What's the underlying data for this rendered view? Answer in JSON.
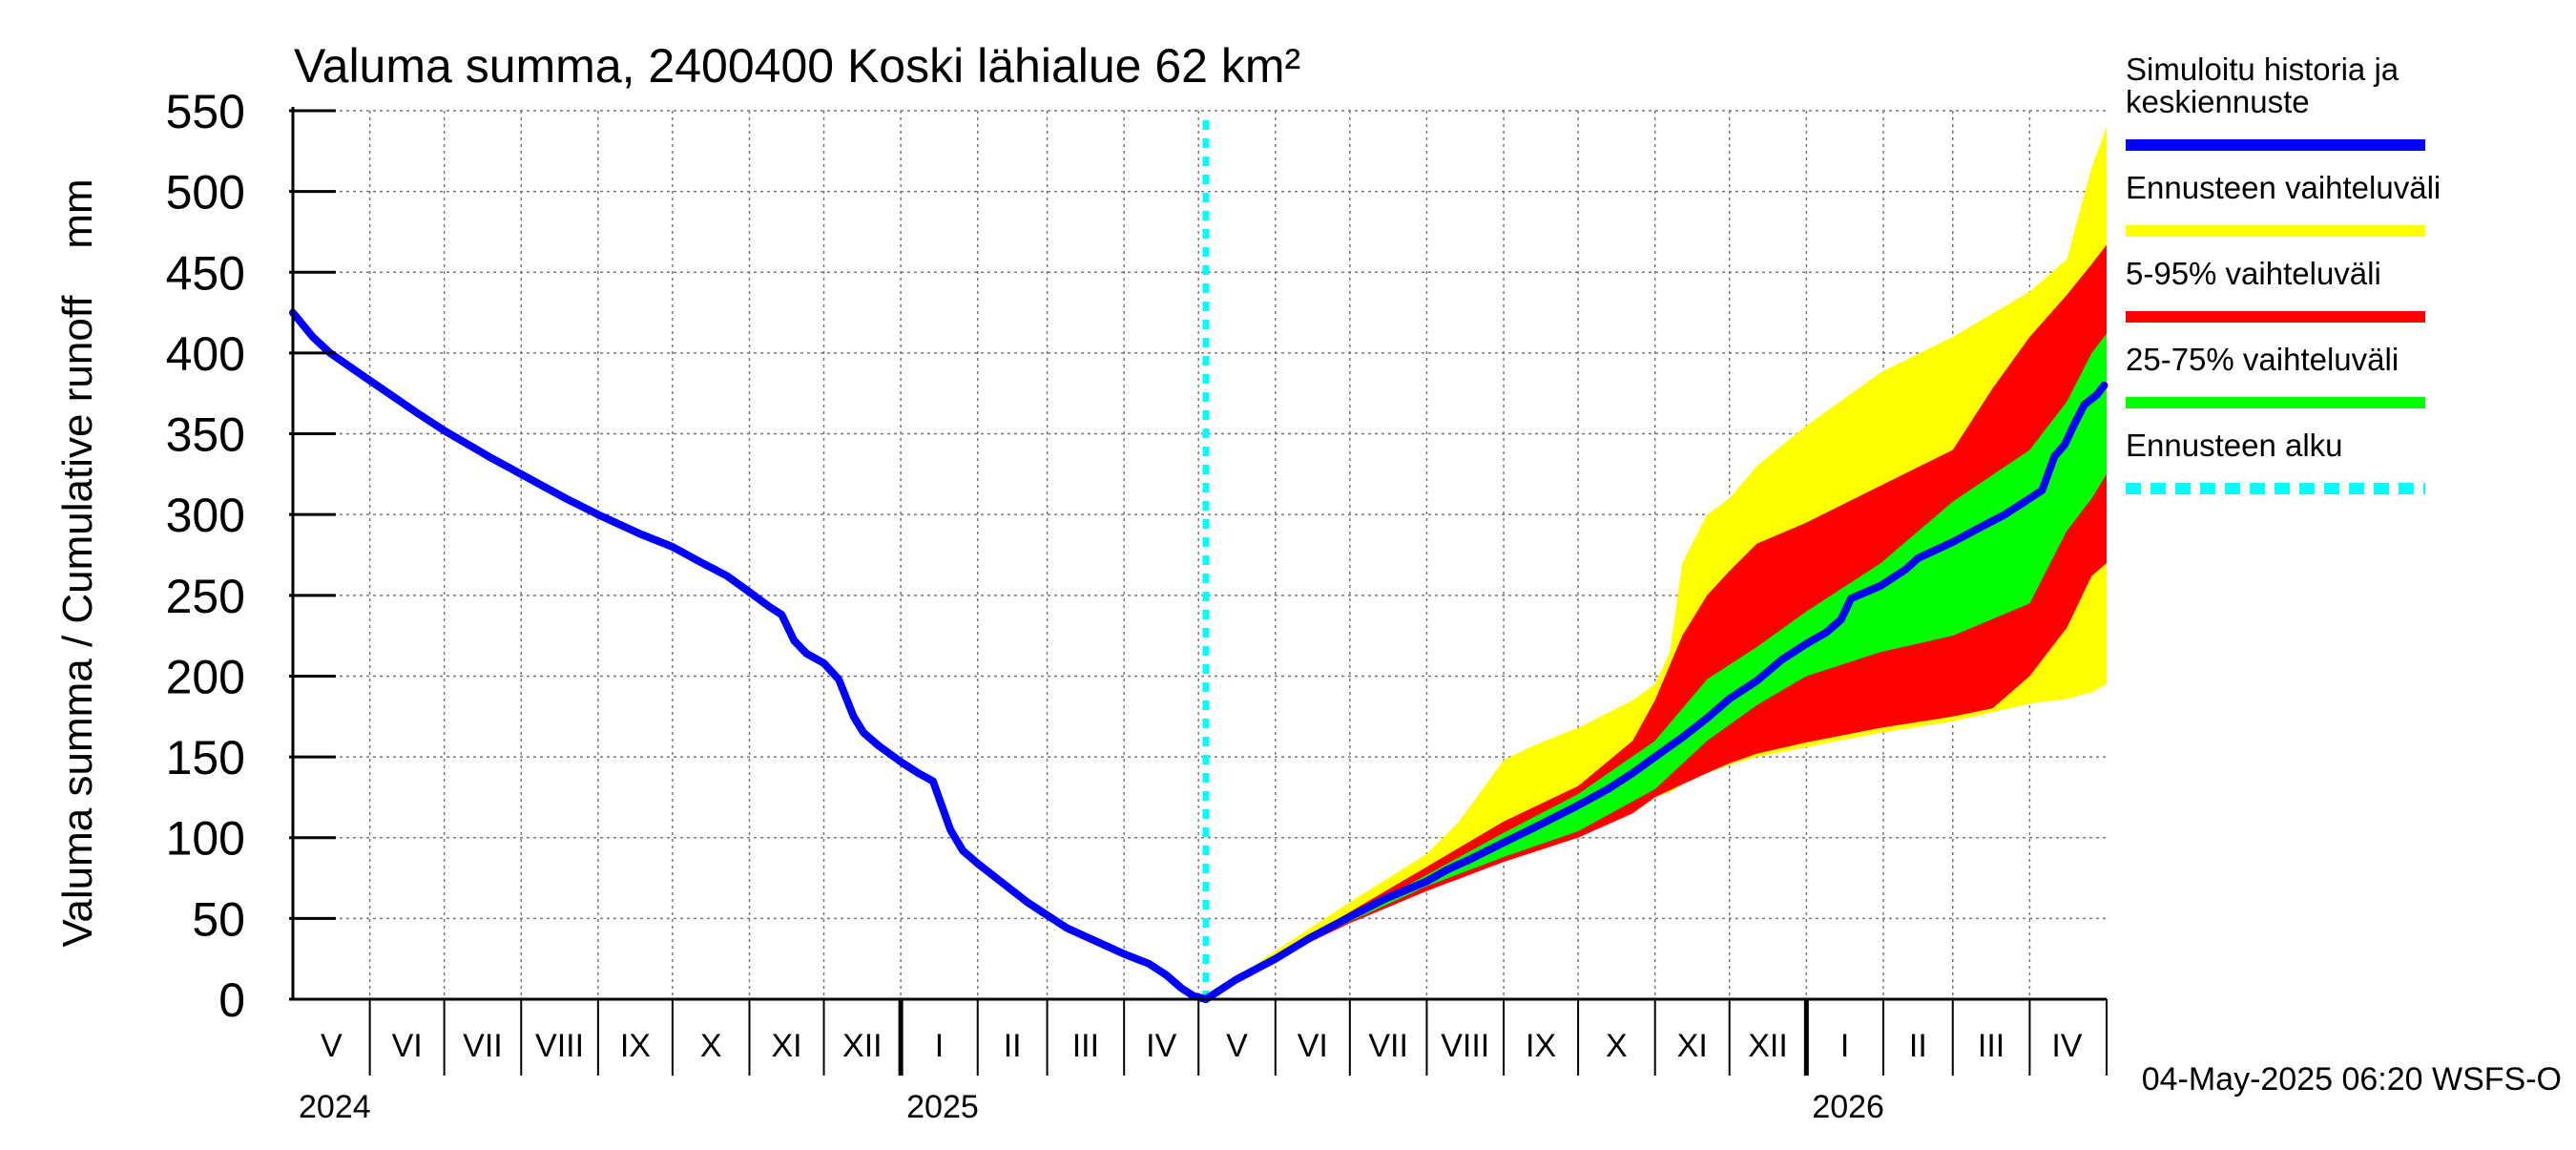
{
  "chart_data": {
    "type": "area",
    "title": "Valuma summa, 2400400 Koski lähialue 62 km²",
    "ylabel": "Valuma summa / Cumulative runoff    mm",
    "ylim": [
      0,
      550
    ],
    "y_ticks": [
      "0",
      "50",
      "100",
      "150",
      "200",
      "250",
      "300",
      "350",
      "400",
      "450",
      "500",
      "550"
    ],
    "x_range_days": [
      0,
      731
    ],
    "grid": true,
    "legend_position": "right",
    "month_labels": [
      {
        "label": "V",
        "day": 0,
        "end": 31
      },
      {
        "label": "VI",
        "day": 31,
        "end": 61
      },
      {
        "label": "VII",
        "day": 61,
        "end": 92
      },
      {
        "label": "VIII",
        "day": 92,
        "end": 123
      },
      {
        "label": "IX",
        "day": 123,
        "end": 153
      },
      {
        "label": "X",
        "day": 153,
        "end": 184
      },
      {
        "label": "XI",
        "day": 184,
        "end": 214
      },
      {
        "label": "XII",
        "day": 214,
        "end": 245
      },
      {
        "label": "I",
        "day": 245,
        "end": 276
      },
      {
        "label": "II",
        "day": 276,
        "end": 304
      },
      {
        "label": "III",
        "day": 304,
        "end": 335
      },
      {
        "label": "IV",
        "day": 335,
        "end": 365
      },
      {
        "label": "V",
        "day": 365,
        "end": 396
      },
      {
        "label": "VI",
        "day": 396,
        "end": 426
      },
      {
        "label": "VII",
        "day": 426,
        "end": 457
      },
      {
        "label": "VIII",
        "day": 457,
        "end": 488
      },
      {
        "label": "IX",
        "day": 488,
        "end": 518
      },
      {
        "label": "X",
        "day": 518,
        "end": 549
      },
      {
        "label": "XI",
        "day": 549,
        "end": 579
      },
      {
        "label": "XII",
        "day": 579,
        "end": 610
      },
      {
        "label": "I",
        "day": 610,
        "end": 641
      },
      {
        "label": "II",
        "day": 641,
        "end": 669
      },
      {
        "label": "III",
        "day": 669,
        "end": 700
      },
      {
        "label": "IV",
        "day": 700,
        "end": 730
      }
    ],
    "year_labels": [
      {
        "label": "2024",
        "day": 0
      },
      {
        "label": "2025",
        "day": 245
      },
      {
        "label": "2026",
        "day": 610
      }
    ],
    "year_boundaries": [
      245,
      610
    ],
    "forecast_start_day": 368,
    "history": {
      "name": "Simuloitu historia ja keskiennuste",
      "x": [
        0,
        8,
        15,
        31,
        50,
        61,
        80,
        92,
        110,
        123,
        140,
        153,
        165,
        170,
        175,
        184,
        192,
        197,
        202,
        207,
        214,
        220,
        226,
        230,
        236,
        245,
        252,
        258,
        265,
        270,
        276,
        281,
        286,
        296,
        304,
        312,
        335,
        345,
        352,
        358,
        363,
        368
      ],
      "y": [
        425,
        410,
        400,
        383,
        363,
        352,
        335,
        325,
        310,
        300,
        288,
        280,
        270,
        266,
        262,
        252,
        243,
        238,
        222,
        214,
        208,
        198,
        175,
        165,
        157,
        147,
        140,
        135,
        105,
        92,
        84,
        78,
        72,
        60,
        52,
        44,
        28,
        22,
        15,
        7,
        2,
        0
      ]
    },
    "forecast_median": {
      "x": [
        368,
        380,
        396,
        410,
        426,
        440,
        457,
        465,
        475,
        488,
        500,
        518,
        530,
        540,
        549,
        560,
        570,
        579,
        590,
        600,
        610,
        618,
        624,
        628,
        640,
        650,
        655,
        669,
        680,
        690,
        700,
        705,
        710,
        714,
        718,
        722,
        727,
        730
      ],
      "y": [
        0,
        12,
        25,
        38,
        51,
        62,
        73,
        80,
        87,
        97,
        106,
        120,
        130,
        140,
        150,
        162,
        174,
        186,
        197,
        210,
        220,
        227,
        235,
        248,
        256,
        266,
        273,
        283,
        292,
        300,
        310,
        315,
        336,
        343,
        356,
        368,
        374,
        380
      ]
    },
    "bands": [
      {
        "name": "Ennusteen vaihteluväli",
        "color": "#ffff00",
        "x": [
          368,
          396,
          426,
          457,
          470,
          488,
          500,
          518,
          540,
          549,
          555,
          560,
          570,
          579,
          590,
          610,
          640,
          669,
          700,
          715,
          725,
          731
        ],
        "upper": [
          0,
          30,
          60,
          90,
          110,
          148,
          157,
          168,
          185,
          195,
          215,
          270,
          300,
          310,
          330,
          355,
          388,
          410,
          438,
          458,
          515,
          540
        ],
        "lower": [
          0,
          24,
          48,
          68,
          80,
          90,
          97,
          107,
          119,
          125,
          128,
          133,
          140,
          145,
          150,
          156,
          165,
          172,
          183,
          186,
          190,
          195
        ]
      },
      {
        "name": "5-95% vaihteluväli",
        "color": "#ff0000",
        "x": [
          368,
          396,
          426,
          457,
          488,
          518,
          540,
          549,
          560,
          570,
          579,
          590,
          610,
          640,
          669,
          685,
          700,
          715,
          725,
          731
        ],
        "upper": [
          0,
          27,
          54,
          82,
          110,
          132,
          160,
          185,
          225,
          250,
          265,
          282,
          295,
          318,
          340,
          378,
          410,
          436,
          455,
          467
        ],
        "lower": [
          0,
          25,
          47,
          67,
          85,
          100,
          115,
          125,
          133,
          140,
          146,
          152,
          159,
          168,
          175,
          180,
          200,
          230,
          262,
          270
        ]
      },
      {
        "name": "25-75% vaihteluväli",
        "color": "#00ff00",
        "x": [
          368,
          396,
          426,
          457,
          488,
          518,
          549,
          570,
          590,
          610,
          640,
          669,
          700,
          715,
          725,
          731
        ],
        "upper": [
          0,
          26,
          52,
          77,
          103,
          127,
          160,
          198,
          218,
          240,
          270,
          308,
          340,
          370,
          400,
          412
        ],
        "lower": [
          0,
          25,
          48,
          70,
          88,
          104,
          130,
          160,
          182,
          200,
          215,
          225,
          245,
          290,
          310,
          325
        ]
      }
    ],
    "legend": [
      {
        "label_lines": [
          "Simuloitu historia ja",
          "keskiennuste"
        ],
        "color": "#0000ff",
        "style": "solid"
      },
      {
        "label_lines": [
          "Ennusteen vaihteluväli"
        ],
        "color": "#ffff00",
        "style": "solid"
      },
      {
        "label_lines": [
          "5-95% vaihteluväli"
        ],
        "color": "#ff0000",
        "style": "solid"
      },
      {
        "label_lines": [
          "25-75% vaihteluväli"
        ],
        "color": "#00ff00",
        "style": "solid"
      },
      {
        "label_lines": [
          "Ennusteen alku"
        ],
        "color": "#00ffff",
        "style": "dashed"
      }
    ],
    "footer": "04-May-2025 06:20 WSFS-O"
  }
}
